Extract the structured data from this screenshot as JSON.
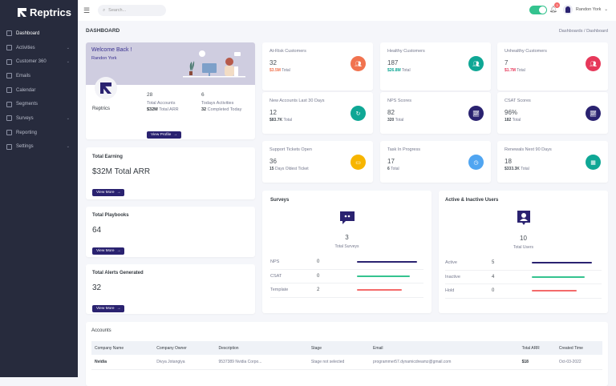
{
  "app": {
    "name": "Reptrics"
  },
  "sidebar": {
    "items": [
      {
        "label": "Dashboard",
        "icon": "home-icon",
        "active": true,
        "expandable": false
      },
      {
        "label": "Activities",
        "icon": "calendar-grid-icon",
        "expandable": true
      },
      {
        "label": "Customer 360",
        "icon": "contact-icon",
        "expandable": true
      },
      {
        "label": "Emails",
        "icon": "mail-icon",
        "expandable": false
      },
      {
        "label": "Calendar",
        "icon": "calendar-icon",
        "expandable": false
      },
      {
        "label": "Segments",
        "icon": "list-icon",
        "expandable": false
      },
      {
        "label": "Surveys",
        "icon": "chat-icon",
        "expandable": true
      },
      {
        "label": "Reporting",
        "icon": "report-icon",
        "expandable": false
      },
      {
        "label": "Settings",
        "icon": "gear-icon",
        "expandable": true
      }
    ]
  },
  "topbar": {
    "search_placeholder": "Search...",
    "notifications": "3",
    "user": "Randon York",
    "toggle_on": true
  },
  "page": {
    "title": "DASHBOARD",
    "breadcrumb": [
      "Dashboards",
      "Dashboard"
    ],
    "breadcrumb_sep": "/"
  },
  "welcome": {
    "title": "Welcome Back !",
    "user": "Randon York",
    "company": "Reptrics",
    "accounts": {
      "value": "28",
      "label": "Total Accounts",
      "sub_bold": "$32M",
      "sub": "Total ARR"
    },
    "activities": {
      "value": "6",
      "label": "Todays Activities",
      "sub_bold": "32",
      "sub": "Completed Today"
    },
    "button": "View Profile"
  },
  "earning": {
    "title": "Total Earning",
    "value": "$32M Total ARR",
    "button": "View More"
  },
  "playbooks": {
    "title": "Total Playbooks",
    "value": "64",
    "button": "View More"
  },
  "alerts": {
    "title": "Total Alerts Generated",
    "value": "32",
    "button": "View More"
  },
  "stats": [
    {
      "title": "At-Risk Customers",
      "value": "32",
      "sub_bold": "$3.5M",
      "sub": "Total",
      "color": "#f1734f",
      "icon": "users-icon",
      "sub_color": "#f1734f"
    },
    {
      "title": "Healthy Customers",
      "value": "187",
      "sub_bold": "$26.8M",
      "sub": "Total",
      "color": "#0fa795",
      "icon": "users-icon",
      "sub_color": "#0fa795"
    },
    {
      "title": "Unhealthy Customers",
      "value": "7",
      "sub_bold": "$1.7M",
      "sub": "Total",
      "color": "#e6385a",
      "icon": "users-icon",
      "sub_color": "#e6385a"
    },
    {
      "title": "New Accounts Last 30 Days",
      "value": "12",
      "sub_bold": "$83.7K",
      "sub": "Total",
      "color": "#0fa795",
      "icon": "refresh-icon"
    },
    {
      "title": "NPS Scores",
      "value": "82",
      "sub_bold": "320",
      "sub": "Total",
      "color": "#2a2270",
      "icon": "line-chart-icon"
    },
    {
      "title": "CSAT Scores",
      "value": "96%",
      "sub_bold": "182",
      "sub": "Total",
      "color": "#2a2270",
      "icon": "line-chart-icon"
    },
    {
      "title": "Support Tickets Open",
      "value": "36",
      "sub_bold": "15",
      "sub": "Days Oldest Ticket",
      "color": "#f7b500",
      "icon": "ticket-icon"
    },
    {
      "title": "Task In Progress",
      "value": "17",
      "sub_bold": "6",
      "sub": "Total",
      "color": "#50a5f1",
      "icon": "clock-icon"
    },
    {
      "title": "Renewals Next 90 Days",
      "value": "18",
      "sub_bold": "$333.3K",
      "sub": "Total",
      "color": "#0fa795",
      "icon": "calendar-icon"
    }
  ],
  "surveys": {
    "title": "Surveys",
    "total": "3",
    "total_label": "Total Surveys",
    "rows": [
      {
        "label": "NPS",
        "value": "0",
        "fill": 1.0,
        "color": "#2a2270"
      },
      {
        "label": "CSAT",
        "value": "0",
        "fill": 0.88,
        "color": "#34c38f"
      },
      {
        "label": "Template",
        "value": "2",
        "fill": 0.75,
        "color": "#f46a6a"
      }
    ]
  },
  "users": {
    "title": "Active & Inactive Users",
    "total": "10",
    "total_label": "Total Users",
    "rows": [
      {
        "label": "Active",
        "value": "5",
        "fill": 1.0,
        "color": "#2a2270"
      },
      {
        "label": "Inactive",
        "value": "4",
        "fill": 0.88,
        "color": "#34c38f"
      },
      {
        "label": "Hold",
        "value": "0",
        "fill": 0.75,
        "color": "#f46a6a"
      }
    ]
  },
  "accounts": {
    "title": "Accounts",
    "columns": [
      "Company Name",
      "Company Owner",
      "Description",
      "Stage",
      "Email",
      "Total ARR",
      "Created Time"
    ],
    "rows": [
      [
        "Nvidia",
        "Divya Jotangiya",
        "9537389 Nvidia Corpo...",
        "Stage not selected",
        "programmer57.dynamicdreamz@gmail.com",
        "$18",
        "Oct-03-2022"
      ]
    ]
  }
}
